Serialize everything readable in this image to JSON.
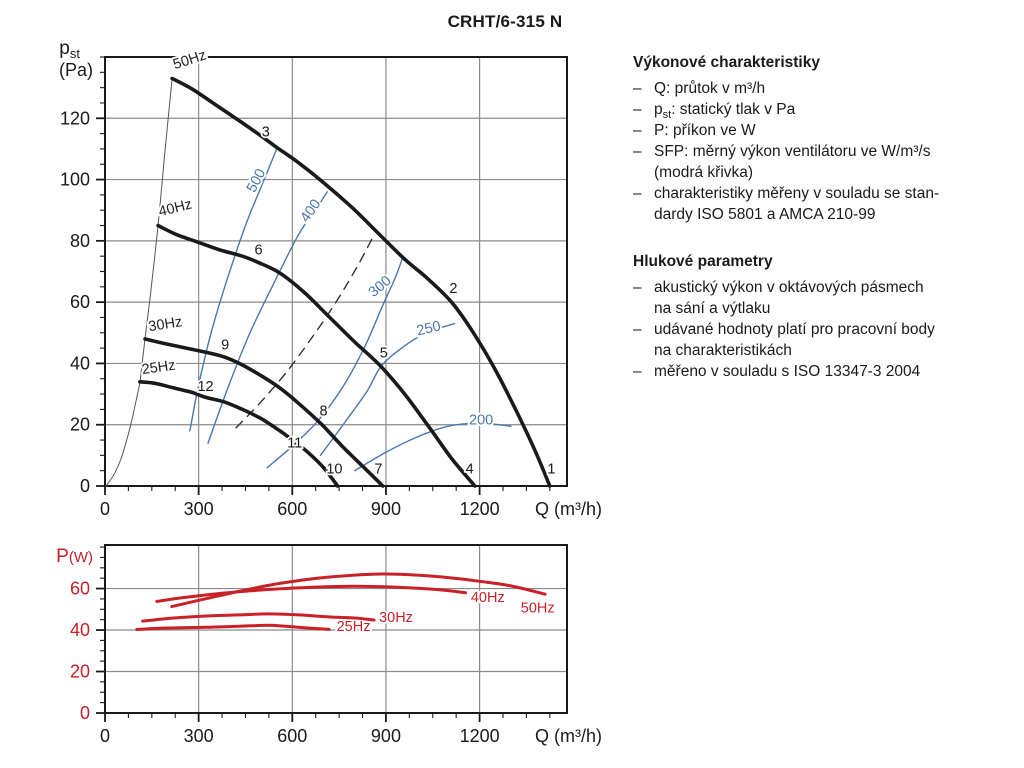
{
  "page_title": "CRHT/6-315 N",
  "colors": {
    "curve_black": "#1a1a1a",
    "sfp_blue": "#4a76b0",
    "power_red": "#c92127",
    "grid_gray": "#8a8a8a"
  },
  "notes": {
    "bullet": "–",
    "sections": [
      {
        "heading": "Výkonové charakteristiky",
        "items": [
          [
            [
              "Q: průtok v m³/h"
            ]
          ],
          [
            [
              {
                "t": "p"
              },
              {
                "t": "st",
                "sub": true
              },
              {
                "t": ": statický tlak v Pa"
              }
            ]
          ],
          [
            [
              "P: příkon ve W"
            ]
          ],
          [
            [
              "SFP: měrný výkon ventilátoru ve W/m³/s"
            ],
            [
              "(modrá křivka)"
            ]
          ],
          [
            [
              "charakteristiky měřeny v souladu se stan-"
            ],
            [
              "dardy ISO 5801 a AMCA 210-99"
            ]
          ]
        ]
      },
      {
        "heading": "Hlukové parametry",
        "items": [
          [
            [
              "akustický výkon v oktávových pásmech"
            ],
            [
              "na sání a výtlaku"
            ]
          ],
          [
            [
              "udávané hodnoty platí pro pracovní body"
            ],
            [
              "na charakteristikách"
            ]
          ],
          [
            [
              "měřeno v souladu s ISO 13347-3 2004"
            ]
          ]
        ]
      }
    ]
  },
  "chart_data": [
    {
      "name": "pressure-flow-chart",
      "type": "line",
      "xlabel": "Q (m³/h)",
      "ylabel": {
        "main": "p",
        "sub": "st",
        "unit": "(Pa)",
        "color": "#1a1a1a"
      },
      "xlim": [
        0,
        1480
      ],
      "ylim": [
        0,
        140
      ],
      "xticks": [
        0,
        300,
        600,
        900,
        1200
      ],
      "yticks": [
        0,
        20,
        40,
        60,
        80,
        100,
        120
      ],
      "minor_x": 75,
      "minor_y": 5,
      "grid": true,
      "series": [
        {
          "name": "stall-limit-line",
          "color": "#555555",
          "width": 1,
          "points": [
            [
              3,
              0
            ],
            [
              30,
              4
            ],
            [
              55,
              10
            ],
            [
              80,
              19
            ],
            [
              100,
              28
            ],
            [
              112,
              34
            ],
            [
              120,
              41
            ],
            [
              128,
              48
            ],
            [
              145,
              62
            ],
            [
              170,
              85
            ],
            [
              190,
              107
            ],
            [
              215,
              133
            ]
          ]
        },
        {
          "name": "system-curve-dashed",
          "color": "#333333",
          "width": 1.4,
          "dash": "9 7",
          "points": [
            [
              420,
              19
            ],
            [
              500,
              27.5
            ],
            [
              580,
              37
            ],
            [
              660,
              48
            ],
            [
              740,
              60
            ],
            [
              810,
              72
            ],
            [
              862,
              82
            ]
          ]
        },
        {
          "name": "sfp-500",
          "color": "#4a76b0",
          "width": 1.4,
          "points": [
            [
              272,
              18
            ],
            [
              300,
              33
            ],
            [
              340,
              50
            ],
            [
              390,
              67
            ],
            [
              450,
              85
            ],
            [
              510,
              100
            ],
            [
              550,
              110
            ]
          ],
          "label": {
            "text": "500",
            "q": 497,
            "p": 99,
            "angle": -62,
            "anchor": "middle"
          }
        },
        {
          "name": "sfp-400",
          "color": "#4a76b0",
          "width": 1.4,
          "points": [
            [
              330,
              14
            ],
            [
              390,
              31
            ],
            [
              460,
              49
            ],
            [
              540,
              66
            ],
            [
              620,
              82
            ],
            [
              680,
              91
            ],
            [
              712,
              96
            ]
          ],
          "label": {
            "text": "400",
            "q": 670,
            "p": 89,
            "angle": -55,
            "anchor": "middle"
          }
        },
        {
          "name": "sfp-300",
          "color": "#4a76b0",
          "width": 1.4,
          "points": [
            [
              520,
              6
            ],
            [
              600,
              13
            ],
            [
              680,
              21
            ],
            [
              760,
              32
            ],
            [
              830,
              45
            ],
            [
              890,
              59
            ],
            [
              930,
              68
            ],
            [
              955,
              75
            ]
          ],
          "label": {
            "text": "300",
            "q": 890,
            "p": 64,
            "angle": -40,
            "anchor": "middle"
          }
        },
        {
          "name": "sfp-250",
          "color": "#4a76b0",
          "width": 1.4,
          "points": [
            [
              690,
              10
            ],
            [
              770,
              21
            ],
            [
              840,
              31
            ],
            [
              884,
              39
            ],
            [
              950,
              45
            ],
            [
              1030,
              50
            ],
            [
              1120,
              53
            ]
          ],
          "label": {
            "text": "250",
            "q": 1040,
            "p": 50,
            "angle": -13,
            "anchor": "middle"
          }
        },
        {
          "name": "sfp-200",
          "color": "#4a76b0",
          "width": 1.4,
          "points": [
            [
              800,
              5
            ],
            [
              900,
              11
            ],
            [
              1000,
              16
            ],
            [
              1100,
              19.5
            ],
            [
              1200,
              20.5
            ],
            [
              1300,
              19.5
            ]
          ],
          "label": {
            "text": "200",
            "q": 1205,
            "p": 20,
            "angle": 0,
            "anchor": "middle"
          }
        },
        {
          "name": "fan-25hz",
          "color": "#1a1a1a",
          "width": 3.6,
          "points": [
            [
              112,
              34
            ],
            [
              160,
              33.5
            ],
            [
              220,
              32
            ],
            [
              280,
              30.5
            ],
            [
              320,
              29
            ],
            [
              380,
              27.5
            ],
            [
              440,
              25
            ],
            [
              500,
              22
            ],
            [
              560,
              18
            ],
            [
              600,
              15
            ],
            [
              650,
              11
            ],
            [
              700,
              6
            ],
            [
              745,
              0
            ]
          ],
          "label": {
            "text": "25Hz",
            "q": 120,
            "p": 36.5,
            "angle": -8,
            "color": "#222222"
          }
        },
        {
          "name": "fan-30hz",
          "color": "#1a1a1a",
          "width": 3.6,
          "points": [
            [
              128,
              48
            ],
            [
              190,
              46.5
            ],
            [
              260,
              45
            ],
            [
              330,
              43.5
            ],
            [
              385,
              42
            ],
            [
              440,
              39.5
            ],
            [
              500,
              36
            ],
            [
              560,
              32
            ],
            [
              620,
              27
            ],
            [
              695,
              20
            ],
            [
              760,
              13
            ],
            [
              830,
              6
            ],
            [
              890,
              0
            ]
          ],
          "label": {
            "text": "30Hz",
            "q": 142,
            "p": 50.5,
            "angle": -9,
            "color": "#222222"
          }
        },
        {
          "name": "fan-40hz",
          "color": "#1a1a1a",
          "width": 3.6,
          "points": [
            [
              170,
              85
            ],
            [
              230,
              82
            ],
            [
              300,
              79.5
            ],
            [
              370,
              77
            ],
            [
              440,
              75
            ],
            [
              490,
              73
            ],
            [
              560,
              69.5
            ],
            [
              640,
              63
            ],
            [
              720,
              55
            ],
            [
              800,
              47
            ],
            [
              884,
              39
            ],
            [
              960,
              30
            ],
            [
              1040,
              19
            ],
            [
              1110,
              9
            ],
            [
              1185,
              0
            ]
          ],
          "label": {
            "text": "40Hz",
            "q": 176,
            "p": 88,
            "angle": -14,
            "color": "#222222"
          }
        },
        {
          "name": "fan-50hz",
          "color": "#1a1a1a",
          "width": 3.6,
          "points": [
            [
              215,
              133
            ],
            [
              280,
              129.5
            ],
            [
              360,
              124
            ],
            [
              440,
              118.5
            ],
            [
              510,
              113.5
            ],
            [
              550,
              110.5
            ],
            [
              620,
              105.5
            ],
            [
              700,
              99
            ],
            [
              790,
              91
            ],
            [
              880,
              82
            ],
            [
              960,
              74
            ],
            [
              1030,
              68
            ],
            [
              1110,
              60
            ],
            [
              1180,
              50
            ],
            [
              1250,
              38
            ],
            [
              1320,
              24
            ],
            [
              1380,
              11
            ],
            [
              1425,
              0
            ]
          ],
          "label": {
            "text": "50Hz",
            "q": 224,
            "p": 136,
            "angle": -18,
            "color": "#222222"
          }
        }
      ],
      "point_labels": [
        {
          "text": "1",
          "q": 1430,
          "p": 4
        },
        {
          "text": "2",
          "q": 1116,
          "p": 63
        },
        {
          "text": "3",
          "q": 515,
          "p": 114
        },
        {
          "text": "4",
          "q": 1168,
          "p": 4
        },
        {
          "text": "5",
          "q": 893,
          "p": 42
        },
        {
          "text": "6",
          "q": 492,
          "p": 75.5
        },
        {
          "text": "7",
          "q": 876,
          "p": 4
        },
        {
          "text": "8",
          "q": 700,
          "p": 23
        },
        {
          "text": "9",
          "q": 385,
          "p": 44.5
        },
        {
          "text": "10",
          "q": 735,
          "p": 4
        },
        {
          "text": "11",
          "q": 608,
          "p": 12.5
        },
        {
          "text": "12",
          "q": 322,
          "p": 31
        }
      ]
    },
    {
      "name": "power-flow-chart",
      "type": "line",
      "xlabel": "Q (m³/h)",
      "ylabel": {
        "main": "P",
        "unit": "(W)",
        "color": "#c92127"
      },
      "xlim": [
        0,
        1480
      ],
      "ylim": [
        0,
        81
      ],
      "xticks": [
        0,
        300,
        600,
        900,
        1200
      ],
      "yticks": [
        0,
        20,
        40,
        60
      ],
      "minor_x": 75,
      "minor_y": 5,
      "grid": true,
      "y_tick_color": "#c92127",
      "series": [
        {
          "name": "power-25hz",
          "color": "#c92127",
          "width": 3,
          "points": [
            [
              102,
              40.3
            ],
            [
              200,
              41
            ],
            [
              320,
              41.3
            ],
            [
              430,
              41.8
            ],
            [
              520,
              42.3
            ],
            [
              580,
              41.8
            ],
            [
              650,
              41
            ],
            [
              718,
              40.3
            ]
          ],
          "label": {
            "text": "25Hz",
            "q": 742,
            "p": 39.5
          }
        },
        {
          "name": "power-30hz",
          "color": "#c92127",
          "width": 3,
          "points": [
            [
              121,
              44.3
            ],
            [
              220,
              45.8
            ],
            [
              330,
              46.8
            ],
            [
              430,
              47.3
            ],
            [
              520,
              47.8
            ],
            [
              620,
              47.3
            ],
            [
              720,
              46.3
            ],
            [
              800,
              45.8
            ],
            [
              862,
              44.8
            ]
          ],
          "label": {
            "text": "30Hz",
            "q": 878,
            "p": 43.8
          }
        },
        {
          "name": "power-40hz",
          "color": "#c92127",
          "width": 3,
          "points": [
            [
              166,
              53.8
            ],
            [
              260,
              55.8
            ],
            [
              380,
              57.8
            ],
            [
              500,
              59.3
            ],
            [
              620,
              60.3
            ],
            [
              740,
              61
            ],
            [
              860,
              61
            ],
            [
              980,
              60.3
            ],
            [
              1080,
              59.3
            ],
            [
              1155,
              58
            ]
          ],
          "label": {
            "text": "40Hz",
            "q": 1172,
            "p": 53.5
          }
        },
        {
          "name": "power-50hz",
          "color": "#c92127",
          "width": 3,
          "points": [
            [
              214,
              51.3
            ],
            [
              320,
              55
            ],
            [
              440,
              59
            ],
            [
              560,
              62.5
            ],
            [
              680,
              65
            ],
            [
              800,
              66.5
            ],
            [
              900,
              67
            ],
            [
              1000,
              66.5
            ],
            [
              1100,
              65.3
            ],
            [
              1200,
              63.5
            ],
            [
              1300,
              61.3
            ],
            [
              1410,
              57.3
            ]
          ],
          "label": {
            "text": "50Hz",
            "q": 1332,
            "p": 48.5
          }
        }
      ]
    }
  ]
}
